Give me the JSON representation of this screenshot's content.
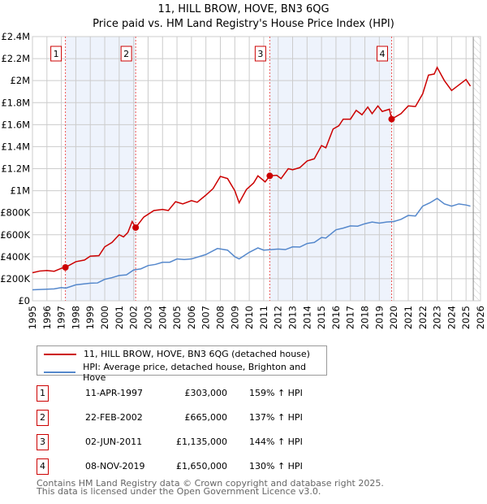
{
  "title_line1": "11, HILL BROW, HOVE, BN3 6QG",
  "title_line2": "Price paid vs. HM Land Registry's House Price Index (HPI)",
  "colors": {
    "property": "#cc0000",
    "hpi": "#5588cc",
    "shade": "#eef3fc"
  },
  "legend": [
    {
      "label": "11, HILL BROW, HOVE, BN3 6QG (detached house)",
      "color": "#cc0000"
    },
    {
      "label": "HPI: Average price, detached house, Brighton and Hove",
      "color": "#5588cc"
    }
  ],
  "transactions": [
    {
      "num": "1",
      "date": "11-APR-1997",
      "price": "£303,000",
      "hpi": "159% ↑ HPI"
    },
    {
      "num": "2",
      "date": "22-FEB-2002",
      "price": "£665,000",
      "hpi": "137% ↑ HPI"
    },
    {
      "num": "3",
      "date": "02-JUN-2011",
      "price": "£1,135,000",
      "hpi": "144% ↑ HPI"
    },
    {
      "num": "4",
      "date": "08-NOV-2019",
      "price": "£1,650,000",
      "hpi": "130% ↑ HPI"
    }
  ],
  "footer_line1": "Contains HM Land Registry data © Crown copyright and database right 2025.",
  "footer_line2": "This data is licensed under the Open Government Licence v3.0.",
  "chart_data": {
    "type": "line",
    "xlim": [
      1995,
      2026
    ],
    "ylim": [
      0,
      2400000
    ],
    "yticks": [
      0,
      200000,
      400000,
      600000,
      800000,
      1000000,
      1200000,
      1400000,
      1600000,
      1800000,
      2000000,
      2200000,
      2400000
    ],
    "ytick_labels": [
      "£0",
      "£200K",
      "£400K",
      "£600K",
      "£800K",
      "£1M",
      "£1.2M",
      "£1.4M",
      "£1.6M",
      "£1.8M",
      "£2M",
      "£2.2M",
      "£2.4M"
    ],
    "xticks": [
      "1995",
      "1996",
      "1997",
      "1998",
      "1999",
      "2000",
      "2001",
      "2002",
      "2003",
      "2004",
      "2005",
      "2006",
      "2007",
      "2008",
      "2009",
      "2010",
      "2011",
      "2012",
      "2013",
      "2014",
      "2015",
      "2016",
      "2017",
      "2018",
      "2019",
      "2020",
      "2021",
      "2022",
      "2023",
      "2024",
      "2025",
      "2026"
    ],
    "shaded_ranges": [
      [
        1997.28,
        2002.14
      ],
      [
        2011.42,
        2019.85
      ]
    ],
    "forecast_from": 2025.5,
    "markers": [
      {
        "label": "1",
        "x": 1997.28,
        "y": 303000
      },
      {
        "label": "2",
        "x": 2002.14,
        "y": 665000
      },
      {
        "label": "3",
        "x": 2011.42,
        "y": 1135000
      },
      {
        "label": "4",
        "x": 2019.85,
        "y": 1650000
      }
    ],
    "series": [
      {
        "name": "11, HILL BROW, HOVE, BN3 6QG (detached house)",
        "points": [
          [
            1995,
            255000
          ],
          [
            1995.5,
            270000
          ],
          [
            1996,
            275000
          ],
          [
            1996.5,
            268000
          ],
          [
            1997,
            295000
          ],
          [
            1997.28,
            303000
          ],
          [
            1998,
            355000
          ],
          [
            1998.6,
            370000
          ],
          [
            1999,
            405000
          ],
          [
            1999.6,
            410000
          ],
          [
            2000,
            490000
          ],
          [
            2000.5,
            530000
          ],
          [
            2001,
            600000
          ],
          [
            2001.3,
            580000
          ],
          [
            2001.6,
            620000
          ],
          [
            2001.9,
            720000
          ],
          [
            2002.14,
            665000
          ],
          [
            2002.7,
            760000
          ],
          [
            2003.4,
            820000
          ],
          [
            2004,
            830000
          ],
          [
            2004.4,
            820000
          ],
          [
            2004.9,
            900000
          ],
          [
            2005.4,
            880000
          ],
          [
            2006,
            910000
          ],
          [
            2006.4,
            895000
          ],
          [
            2007,
            960000
          ],
          [
            2007.5,
            1020000
          ],
          [
            2008,
            1130000
          ],
          [
            2008.5,
            1110000
          ],
          [
            2009,
            1000000
          ],
          [
            2009.3,
            890000
          ],
          [
            2009.8,
            1010000
          ],
          [
            2010.3,
            1070000
          ],
          [
            2010.6,
            1135000
          ],
          [
            2011.1,
            1080000
          ],
          [
            2011.42,
            1135000
          ],
          [
            2011.9,
            1140000
          ],
          [
            2012.2,
            1110000
          ],
          [
            2012.7,
            1200000
          ],
          [
            2013,
            1190000
          ],
          [
            2013.5,
            1210000
          ],
          [
            2014,
            1270000
          ],
          [
            2014.5,
            1290000
          ],
          [
            2015,
            1410000
          ],
          [
            2015.3,
            1390000
          ],
          [
            2015.8,
            1560000
          ],
          [
            2016.2,
            1590000
          ],
          [
            2016.5,
            1650000
          ],
          [
            2017,
            1650000
          ],
          [
            2017.4,
            1730000
          ],
          [
            2017.8,
            1690000
          ],
          [
            2018.2,
            1760000
          ],
          [
            2018.5,
            1700000
          ],
          [
            2018.9,
            1770000
          ],
          [
            2019.2,
            1720000
          ],
          [
            2019.7,
            1740000
          ],
          [
            2019.85,
            1650000
          ],
          [
            2020.5,
            1700000
          ],
          [
            2021,
            1770000
          ],
          [
            2021.5,
            1765000
          ],
          [
            2022,
            1880000
          ],
          [
            2022.4,
            2050000
          ],
          [
            2022.8,
            2060000
          ],
          [
            2023,
            2120000
          ],
          [
            2023.5,
            2000000
          ],
          [
            2024,
            1910000
          ],
          [
            2024.5,
            1960000
          ],
          [
            2025,
            2010000
          ],
          [
            2025.3,
            1950000
          ]
        ]
      },
      {
        "name": "HPI: Average price, detached house, Brighton and Hove",
        "points": [
          [
            1995,
            100000
          ],
          [
            1996,
            105000
          ],
          [
            1996.5,
            108000
          ],
          [
            1997,
            120000
          ],
          [
            1997.3,
            115000
          ],
          [
            1998,
            145000
          ],
          [
            1999,
            160000
          ],
          [
            1999.5,
            162000
          ],
          [
            2000,
            195000
          ],
          [
            2000.5,
            210000
          ],
          [
            2001,
            230000
          ],
          [
            2001.5,
            235000
          ],
          [
            2002,
            280000
          ],
          [
            2002.5,
            290000
          ],
          [
            2003,
            320000
          ],
          [
            2003.5,
            330000
          ],
          [
            2004,
            350000
          ],
          [
            2004.5,
            350000
          ],
          [
            2005,
            380000
          ],
          [
            2005.5,
            375000
          ],
          [
            2006,
            380000
          ],
          [
            2007,
            420000
          ],
          [
            2007.8,
            475000
          ],
          [
            2008.5,
            460000
          ],
          [
            2009,
            400000
          ],
          [
            2009.3,
            380000
          ],
          [
            2010,
            440000
          ],
          [
            2010.6,
            480000
          ],
          [
            2011,
            460000
          ],
          [
            2012,
            470000
          ],
          [
            2012.5,
            465000
          ],
          [
            2013,
            490000
          ],
          [
            2013.5,
            488000
          ],
          [
            2014,
            520000
          ],
          [
            2014.5,
            530000
          ],
          [
            2015,
            575000
          ],
          [
            2015.3,
            570000
          ],
          [
            2016,
            645000
          ],
          [
            2016.5,
            660000
          ],
          [
            2017,
            680000
          ],
          [
            2017.5,
            678000
          ],
          [
            2018,
            700000
          ],
          [
            2018.5,
            715000
          ],
          [
            2019,
            705000
          ],
          [
            2019.5,
            715000
          ],
          [
            2020,
            720000
          ],
          [
            2020.5,
            740000
          ],
          [
            2021,
            775000
          ],
          [
            2021.5,
            770000
          ],
          [
            2022,
            860000
          ],
          [
            2022.5,
            890000
          ],
          [
            2023,
            930000
          ],
          [
            2023.5,
            880000
          ],
          [
            2024,
            860000
          ],
          [
            2024.5,
            880000
          ],
          [
            2025,
            870000
          ],
          [
            2025.3,
            860000
          ]
        ]
      }
    ]
  }
}
